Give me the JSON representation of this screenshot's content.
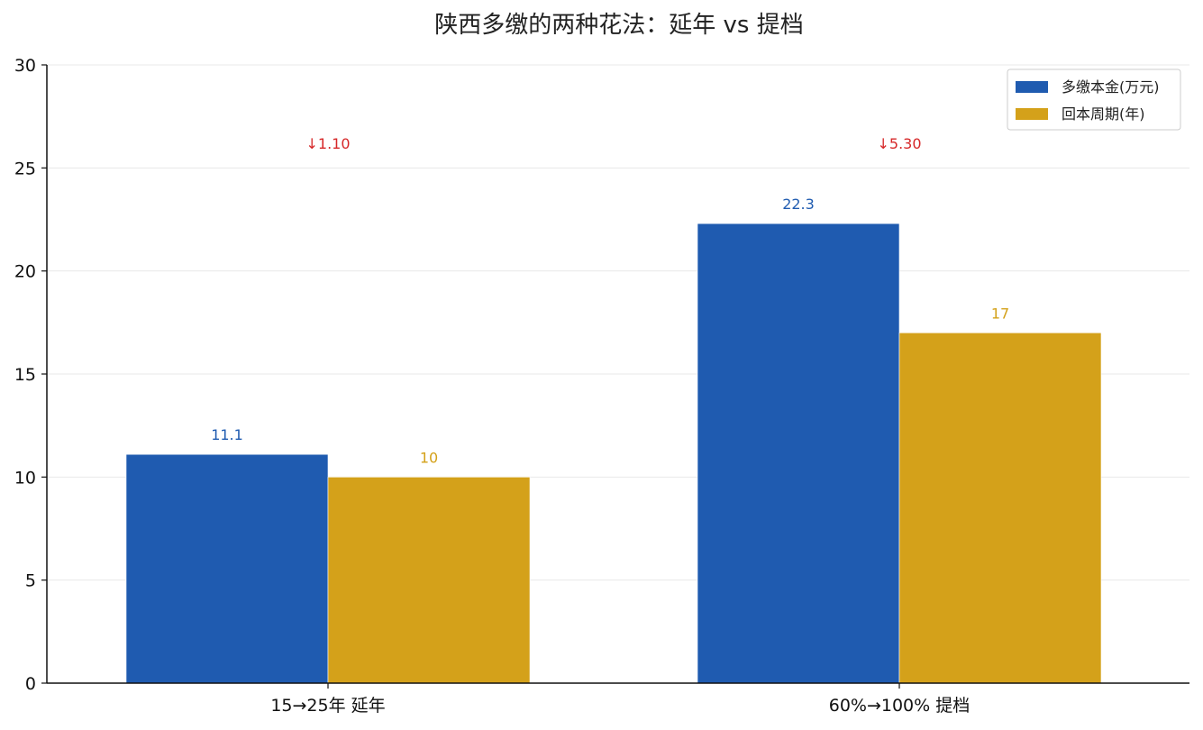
{
  "chart_data": {
    "type": "bar",
    "title": "陕西多缴的两种花法：延年 vs 提档",
    "xlabel": "",
    "ylabel": "",
    "categories": [
      "15→25年 延年",
      "60%→100% 提档"
    ],
    "series": [
      {
        "name": "多缴本金(万元)",
        "values": [
          11.1,
          22.3
        ],
        "labels": [
          "11.1",
          "22.3"
        ],
        "color": "#1f5bb0"
      },
      {
        "name": "回本周期(年)",
        "values": [
          10,
          17
        ],
        "labels": [
          "10",
          "17"
        ],
        "color": "#d4a11a"
      }
    ],
    "annotations": [
      "↓1.10",
      "↓5.30"
    ],
    "annotation_color": "#d62728",
    "ylim": [
      0,
      30
    ],
    "yticks": [
      0,
      5,
      10,
      15,
      20,
      25,
      30
    ],
    "grid": true,
    "legend": "top-right"
  }
}
